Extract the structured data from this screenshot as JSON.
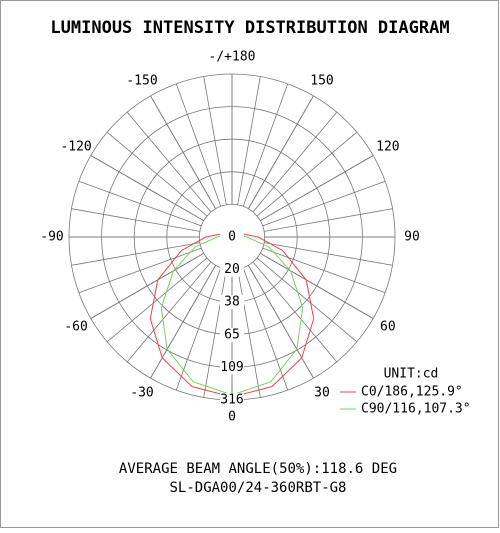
{
  "chart_data": {
    "type": "polar",
    "title": "LUMINOUS INTENSITY DISTRIBUTION DIAGRAM",
    "angles": [
      -180,
      -165,
      -150,
      -135,
      -120,
      -105,
      -90,
      -75,
      -60,
      -45,
      -30,
      -15,
      0,
      15,
      30,
      45,
      60,
      75,
      90,
      105,
      120,
      135,
      150,
      165,
      180
    ],
    "series": [
      {
        "name": "C0/186,125.9°",
        "color": "#e8474a",
        "values": [
          3,
          3,
          3,
          4,
          5,
          7,
          16,
          31,
          55,
          89,
          167,
          264,
          297,
          264,
          167,
          89,
          55,
          31,
          16,
          7,
          5,
          4,
          3,
          3,
          3
        ]
      },
      {
        "name": "C90/116,107.3°",
        "color": "#7ccf6a",
        "values": [
          3,
          3,
          3,
          3,
          4,
          5,
          9,
          23,
          40,
          68,
          108,
          233,
          283,
          233,
          108,
          68,
          40,
          23,
          9,
          5,
          4,
          3,
          3,
          3,
          3
        ]
      }
    ],
    "rlim": [
      0,
      316
    ],
    "rticks": [
      0,
      20,
      38,
      65,
      109,
      316
    ],
    "angle_ticks": [
      0,
      30,
      60,
      90,
      120,
      150,
      {
        "value": 180,
        "label": "-/+180"
      },
      -150,
      -120,
      -90,
      -60,
      -30
    ],
    "unit": "UNIT:cd",
    "footer": [
      "AVERAGE BEAM ANGLE(50%):118.6 DEG",
      "SL-DGA00/24-360RBT-G8"
    ]
  }
}
